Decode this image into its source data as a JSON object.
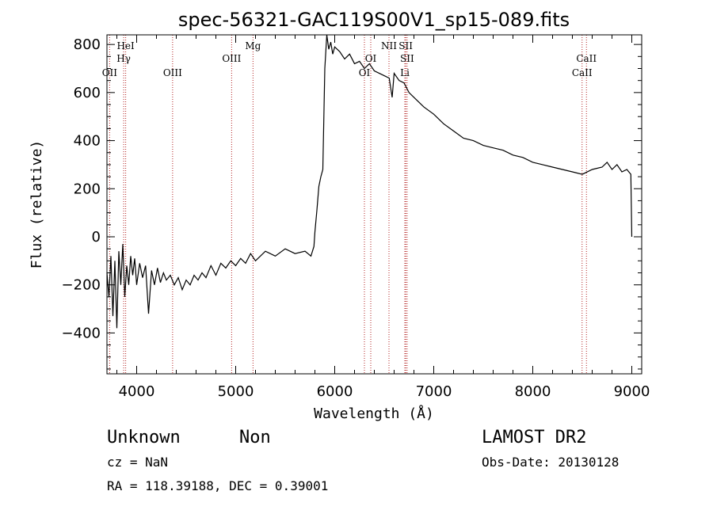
{
  "chart_data": {
    "type": "line",
    "title": "spec-56321-GAC119S00V1_sp15-089.fits",
    "xlabel": "Wavelength (Å)",
    "ylabel": "Flux (relative)",
    "xlim": [
      3700,
      9100
    ],
    "ylim": [
      -570,
      840
    ],
    "x_ticks": [
      4000,
      5000,
      6000,
      7000,
      8000,
      9000
    ],
    "y_ticks": [
      -400,
      -200,
      0,
      200,
      400,
      600,
      800
    ],
    "grid": false,
    "series": [
      {
        "points": [
          [
            3700,
            -150
          ],
          [
            3720,
            -250
          ],
          [
            3740,
            -80
          ],
          [
            3760,
            -330
          ],
          [
            3780,
            -100
          ],
          [
            3800,
            -380
          ],
          [
            3820,
            -60
          ],
          [
            3840,
            -200
          ],
          [
            3860,
            -30
          ],
          [
            3880,
            -250
          ],
          [
            3900,
            -120
          ],
          [
            3920,
            -200
          ],
          [
            3940,
            -80
          ],
          [
            3960,
            -160
          ],
          [
            3980,
            -90
          ],
          [
            4000,
            -200
          ],
          [
            4030,
            -110
          ],
          [
            4060,
            -170
          ],
          [
            4090,
            -120
          ],
          [
            4120,
            -320
          ],
          [
            4150,
            -140
          ],
          [
            4180,
            -200
          ],
          [
            4210,
            -130
          ],
          [
            4240,
            -190
          ],
          [
            4270,
            -150
          ],
          [
            4300,
            -180
          ],
          [
            4340,
            -160
          ],
          [
            4380,
            -200
          ],
          [
            4420,
            -170
          ],
          [
            4460,
            -220
          ],
          [
            4500,
            -180
          ],
          [
            4540,
            -200
          ],
          [
            4580,
            -160
          ],
          [
            4620,
            -180
          ],
          [
            4660,
            -150
          ],
          [
            4700,
            -170
          ],
          [
            4750,
            -120
          ],
          [
            4800,
            -160
          ],
          [
            4850,
            -110
          ],
          [
            4900,
            -130
          ],
          [
            4950,
            -100
          ],
          [
            5000,
            -120
          ],
          [
            5050,
            -90
          ],
          [
            5100,
            -110
          ],
          [
            5150,
            -70
          ],
          [
            5200,
            -100
          ],
          [
            5300,
            -60
          ],
          [
            5400,
            -80
          ],
          [
            5500,
            -50
          ],
          [
            5600,
            -70
          ],
          [
            5700,
            -60
          ],
          [
            5760,
            -80
          ],
          [
            5790,
            -40
          ],
          [
            5800,
            20
          ],
          [
            5820,
            110
          ],
          [
            5840,
            210
          ],
          [
            5860,
            250
          ],
          [
            5880,
            280
          ],
          [
            5890,
            500
          ],
          [
            5900,
            700
          ],
          [
            5920,
            840
          ],
          [
            5940,
            780
          ],
          [
            5960,
            810
          ],
          [
            5980,
            760
          ],
          [
            6000,
            790
          ],
          [
            6050,
            770
          ],
          [
            6100,
            740
          ],
          [
            6150,
            760
          ],
          [
            6200,
            720
          ],
          [
            6250,
            730
          ],
          [
            6300,
            700
          ],
          [
            6350,
            720
          ],
          [
            6400,
            690
          ],
          [
            6450,
            680
          ],
          [
            6500,
            670
          ],
          [
            6550,
            660
          ],
          [
            6580,
            580
          ],
          [
            6600,
            680
          ],
          [
            6650,
            650
          ],
          [
            6700,
            640
          ],
          [
            6750,
            600
          ],
          [
            6800,
            580
          ],
          [
            6900,
            540
          ],
          [
            7000,
            510
          ],
          [
            7100,
            470
          ],
          [
            7200,
            440
          ],
          [
            7300,
            410
          ],
          [
            7400,
            400
          ],
          [
            7500,
            380
          ],
          [
            7600,
            370
          ],
          [
            7700,
            360
          ],
          [
            7800,
            340
          ],
          [
            7900,
            330
          ],
          [
            8000,
            310
          ],
          [
            8100,
            300
          ],
          [
            8200,
            290
          ],
          [
            8300,
            280
          ],
          [
            8400,
            270
          ],
          [
            8500,
            260
          ],
          [
            8600,
            280
          ],
          [
            8700,
            290
          ],
          [
            8750,
            310
          ],
          [
            8800,
            280
          ],
          [
            8850,
            300
          ],
          [
            8900,
            270
          ],
          [
            8950,
            280
          ],
          [
            8990,
            260
          ],
          [
            9000,
            0
          ]
        ]
      }
    ],
    "spectral_lines": [
      {
        "label": "OII",
        "wavelength": 3727,
        "label_row": 3
      },
      {
        "label": "Hγ",
        "wavelength": 3869,
        "label_row": 2
      },
      {
        "label": "HeI",
        "wavelength": 3889,
        "label_row": 1
      },
      {
        "label": "OIII",
        "wavelength": 4363,
        "label_row": 3
      },
      {
        "label": "OIII",
        "wavelength": 4959,
        "label_row": 2
      },
      {
        "label": "Mg",
        "wavelength": 5175,
        "label_row": 1
      },
      {
        "label": "OI",
        "wavelength": 6300,
        "label_row": 3
      },
      {
        "label": "OI",
        "wavelength": 6364,
        "label_row": 2
      },
      {
        "label": "NII",
        "wavelength": 6548,
        "label_row": 1
      },
      {
        "label": "Li",
        "wavelength": 6708,
        "label_row": 3
      },
      {
        "label": "SII",
        "wavelength": 6717,
        "label_row": 1
      },
      {
        "label": "SII",
        "wavelength": 6731,
        "label_row": 2
      },
      {
        "label": "CaII",
        "wavelength": 8498,
        "label_row": 3
      },
      {
        "label": "CaII",
        "wavelength": 8542,
        "label_row": 2
      }
    ]
  },
  "info": {
    "object_class": "Unknown",
    "subclass": "Non",
    "survey": "LAMOST DR2",
    "cz": "cz = NaN",
    "obs_date": "Obs-Date: 20130128",
    "coords": "RA = 118.39188, DEC =    0.39001"
  },
  "colors": {
    "spectrum": "#000000",
    "line_markers": "#b22222"
  }
}
